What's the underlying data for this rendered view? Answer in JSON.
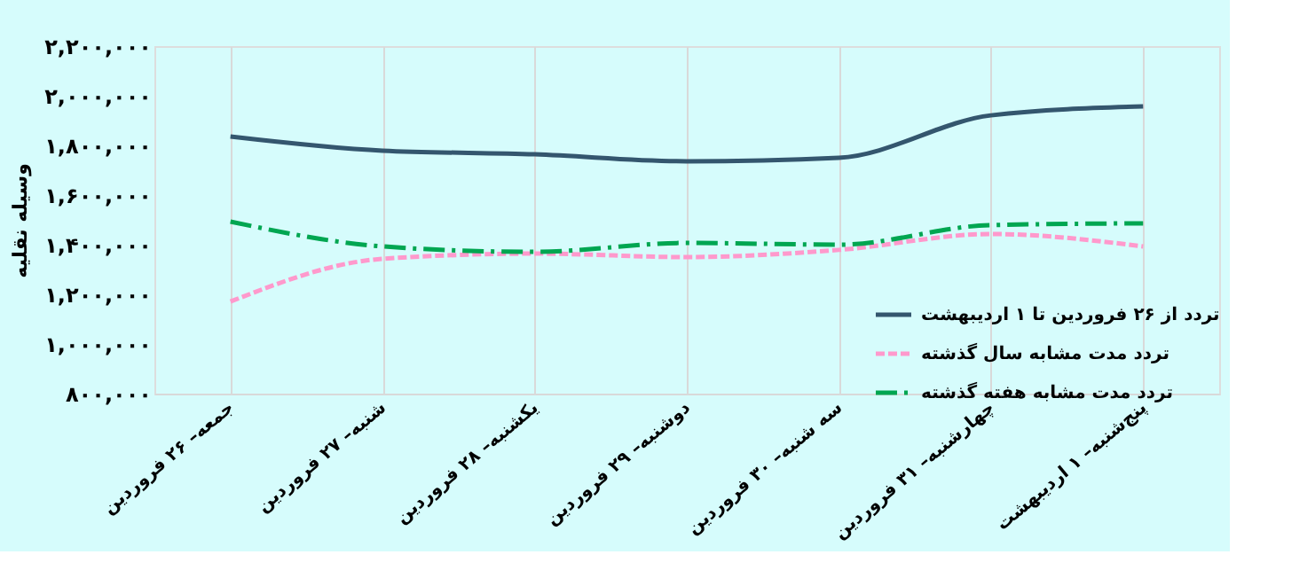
{
  "chart_data": {
    "type": "line",
    "ylabel": "وسیله نقلیه",
    "categories": [
      "جمعه– ۲۶ فروردین",
      "شنبه– ۲۷ فروردین",
      "یکشنبه– ۲۸ فروردین",
      "دوشنبه– ۲۹ فروردین",
      "سه شنبه– ۳۰ فروردین",
      "چهارشنبه– ۳۱ فروردین",
      "پنج‌شنبه– ۱ اردیبهشت"
    ],
    "series": [
      {
        "name": "تردد از ۲۶ فروردین تا ۱ اردیبهشت",
        "color": "#34566e",
        "line_style": "solid",
        "values": [
          1836000,
          1779000,
          1764000,
          1736000,
          1750000,
          1921000,
          1957000
        ]
      },
      {
        "name": "تردد مدت مشابه سال گذشته",
        "color": "#ff99cc",
        "line_style": "dashed",
        "values": [
          1171000,
          1343000,
          1364000,
          1350000,
          1379000,
          1443000,
          1393000
        ]
      },
      {
        "name": "تردد مدت مشابه هفته گذشته",
        "color": "#00a651",
        "line_style": "dashdot",
        "values": [
          1493000,
          1393000,
          1371000,
          1407000,
          1400000,
          1479000,
          1486000
        ]
      }
    ],
    "ylim": [
      800000,
      2200000
    ],
    "yticks": [
      {
        "value": 800000,
        "label": "۸۰۰,۰۰۰"
      },
      {
        "value": 1000000,
        "label": "۱,۰۰۰,۰۰۰"
      },
      {
        "value": 1200000,
        "label": "۱,۲۰۰,۰۰۰"
      },
      {
        "value": 1400000,
        "label": "۱,۴۰۰,۰۰۰"
      },
      {
        "value": 1600000,
        "label": "۱,۶۰۰,۰۰۰"
      },
      {
        "value": 1800000,
        "label": "۱,۸۰۰,۰۰۰"
      },
      {
        "value": 2000000,
        "label": "۲,۰۰۰,۰۰۰"
      },
      {
        "value": 2200000,
        "label": "۲,۲۰۰,۰۰۰"
      }
    ],
    "grid": "x",
    "legend": "bottom right"
  }
}
